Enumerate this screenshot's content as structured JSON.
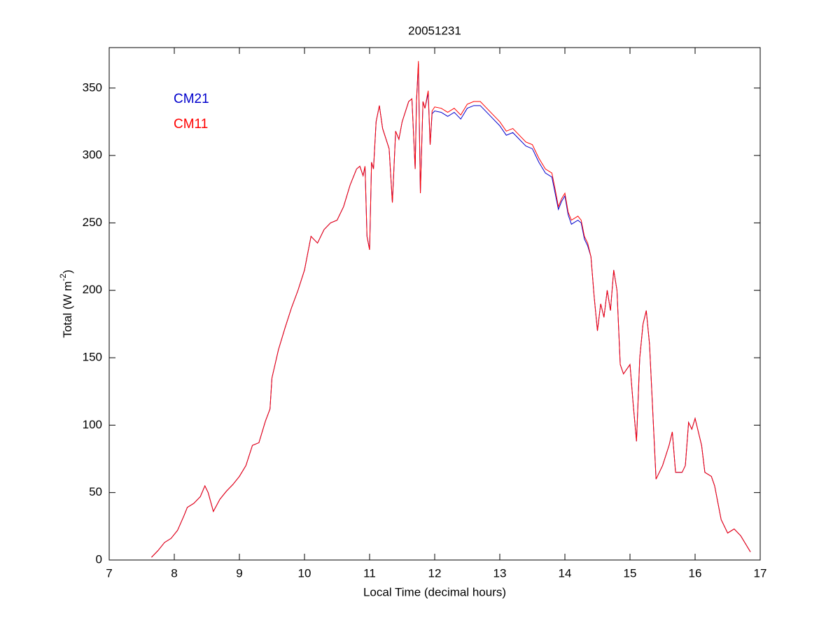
{
  "chart_data": {
    "type": "line",
    "title": "20051231",
    "xlabel": "Local Time (decimal hours)",
    "ylabel": {
      "text": "Total (W m",
      "superscript": "-2",
      "suffix": ")"
    },
    "x": [
      7.65,
      7.75,
      7.85,
      7.95,
      8.05,
      8.15,
      8.2,
      8.3,
      8.4,
      8.47,
      8.52,
      8.6,
      8.7,
      8.8,
      8.9,
      9.0,
      9.1,
      9.2,
      9.3,
      9.4,
      9.47,
      9.5,
      9.6,
      9.7,
      9.8,
      9.9,
      10.0,
      10.1,
      10.2,
      10.3,
      10.4,
      10.5,
      10.6,
      10.7,
      10.8,
      10.85,
      10.9,
      10.93,
      10.96,
      11.0,
      11.03,
      11.06,
      11.1,
      11.15,
      11.2,
      11.3,
      11.35,
      11.4,
      11.45,
      11.5,
      11.6,
      11.65,
      11.7,
      11.72,
      11.75,
      11.78,
      11.82,
      11.85,
      11.9,
      11.93,
      11.96,
      12.0,
      12.1,
      12.2,
      12.3,
      12.4,
      12.5,
      12.6,
      12.7,
      12.8,
      12.9,
      13.0,
      13.1,
      13.2,
      13.3,
      13.4,
      13.5,
      13.6,
      13.7,
      13.8,
      13.85,
      13.9,
      13.95,
      14.0,
      14.05,
      14.1,
      14.2,
      14.25,
      14.3,
      14.35,
      14.4,
      14.45,
      14.5,
      14.55,
      14.6,
      14.65,
      14.7,
      14.75,
      14.8,
      14.85,
      14.9,
      15.0,
      15.05,
      15.1,
      15.15,
      15.2,
      15.25,
      15.3,
      15.35,
      15.4,
      15.5,
      15.6,
      15.65,
      15.7,
      15.8,
      15.85,
      15.9,
      15.95,
      16.0,
      16.1,
      16.15,
      16.25,
      16.3,
      16.4,
      16.5,
      16.6,
      16.7,
      16.8,
      16.85
    ],
    "series": [
      {
        "name": "CM21",
        "color": "#0000cc",
        "values": [
          2,
          7,
          13,
          16,
          22,
          33,
          39,
          42,
          47,
          55,
          50,
          36,
          45,
          51,
          56,
          62,
          70,
          85,
          87,
          103,
          112,
          135,
          156,
          172,
          187,
          200,
          215,
          240,
          235,
          245,
          250,
          252,
          262,
          278,
          290,
          292,
          285,
          292,
          240,
          230,
          295,
          290,
          325,
          337,
          320,
          305,
          265,
          318,
          312,
          325,
          340,
          342,
          290,
          340,
          368,
          272,
          340,
          335,
          346,
          308,
          331,
          333,
          332,
          329,
          332,
          327,
          335,
          337,
          337,
          332,
          327,
          322,
          315,
          317,
          312,
          307,
          305,
          295,
          287,
          284,
          272,
          260,
          266,
          270,
          256,
          249,
          252,
          250,
          238,
          233,
          225,
          195,
          170,
          190,
          180,
          200,
          185,
          215,
          200,
          145,
          138,
          145,
          115,
          88,
          150,
          175,
          185,
          160,
          110,
          60,
          70,
          85,
          95,
          65,
          65,
          70,
          102,
          97,
          105,
          85,
          65,
          62,
          55,
          30,
          20,
          23,
          18,
          10,
          6
        ]
      },
      {
        "name": "CM11",
        "color": "#ff0000",
        "values": [
          2,
          7,
          13,
          16,
          22,
          33,
          39,
          42,
          47,
          55,
          50,
          36,
          45,
          51,
          56,
          62,
          70,
          85,
          87,
          103,
          112,
          135,
          156,
          172,
          187,
          200,
          215,
          240,
          235,
          245,
          250,
          252,
          262,
          278,
          290,
          292,
          285,
          292,
          240,
          230,
          295,
          290,
          325,
          337,
          320,
          305,
          265,
          318,
          312,
          325,
          340,
          342,
          290,
          340,
          370,
          272,
          340,
          335,
          348,
          308,
          333,
          336,
          335,
          332,
          335,
          330,
          338,
          340,
          340,
          335,
          330,
          325,
          318,
          320,
          315,
          310,
          308,
          298,
          290,
          287,
          275,
          262,
          268,
          272,
          258,
          252,
          255,
          252,
          240,
          235,
          225,
          195,
          170,
          190,
          180,
          200,
          185,
          215,
          200,
          145,
          138,
          145,
          115,
          88,
          150,
          175,
          185,
          160,
          110,
          60,
          70,
          85,
          95,
          65,
          65,
          70,
          102,
          97,
          105,
          85,
          65,
          62,
          55,
          30,
          20,
          23,
          18,
          10,
          6
        ]
      }
    ],
    "xlim": [
      7,
      17
    ],
    "xticks": [
      7,
      8,
      9,
      10,
      11,
      12,
      13,
      14,
      15,
      16,
      17
    ],
    "ylim": [
      0,
      380
    ],
    "yticks": [
      0,
      50,
      100,
      150,
      200,
      250,
      300,
      350
    ],
    "legend": "upper left",
    "grid": false
  }
}
